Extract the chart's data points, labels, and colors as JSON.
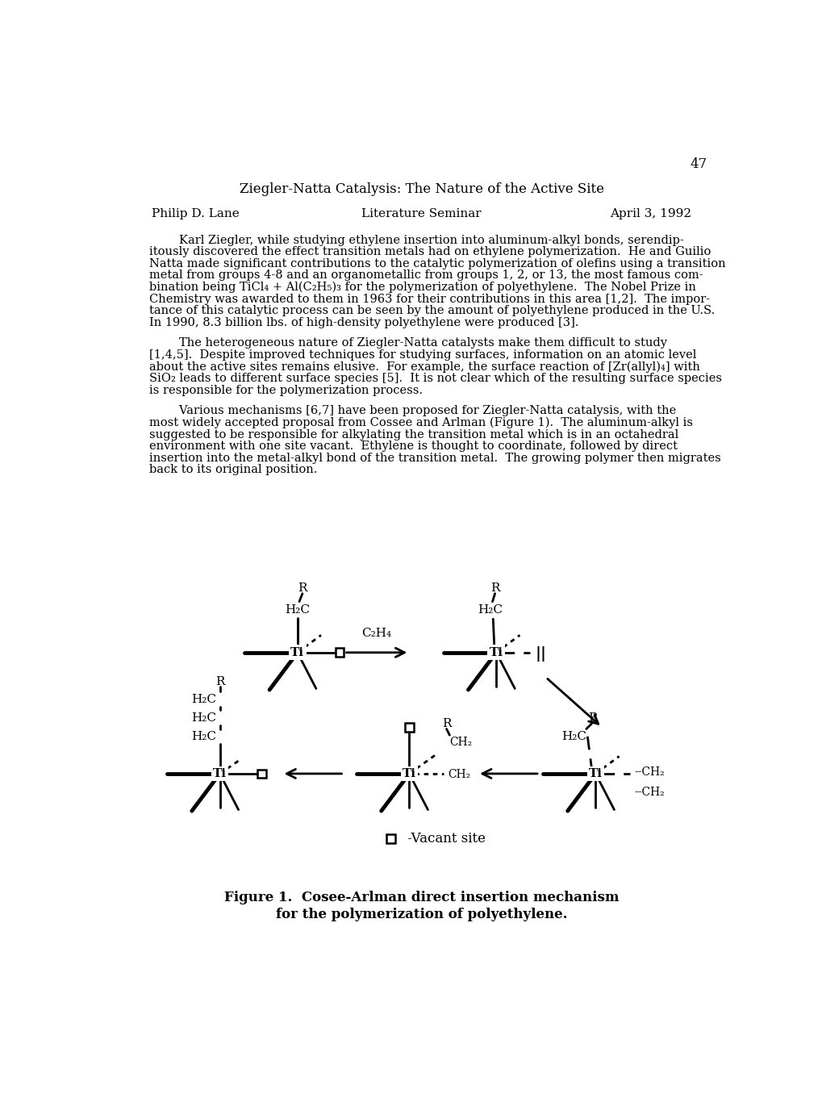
{
  "page_number": "47",
  "title": "Ziegler-Natta Catalysis: The Nature of the Active Site",
  "author": "Philip D. Lane",
  "center_header": "Literature Seminar",
  "date": "April 3, 1992",
  "p1_lines": [
    "        Karl Ziegler, while studying ethylene insertion into aluminum-alkyl bonds, serendip-",
    "itously discovered the effect transition metals had on ethylene polymerization.  He and Guilio",
    "Natta made significant contributions to the catalytic polymerization of olefins using a transition",
    "metal from groups 4-8 and an organometallic from groups 1, 2, or 13, the most famous com-",
    "bination being TiCl₄ + Al(C₂H₅)₃ for the polymerization of polyethylene.  The Nobel Prize in",
    "Chemistry was awarded to them in 1963 for their contributions in this area [1,2].  The impor-",
    "tance of this catalytic process can be seen by the amount of polyethylene produced in the U.S.",
    "In 1990, 8.3 billion lbs. of high-density polyethylene were produced [3]."
  ],
  "p2_lines": [
    "        The heterogeneous nature of Ziegler-Natta catalysts make them difficult to study",
    "[1,4,5].  Despite improved techniques for studying surfaces, information on an atomic level",
    "about the active sites remains elusive.  For example, the surface reaction of [Zr(allyl)₄] with",
    "SiO₂ leads to different surface species [5].  It is not clear which of the resulting surface species",
    "is responsible for the polymerization process."
  ],
  "p3_lines": [
    "        Various mechanisms [6,7] have been proposed for Ziegler-Natta catalysis, with the",
    "most widely accepted proposal from Cossee and Arlman (Figure 1).  The aluminum-alkyl is",
    "suggested to be responsible for alkylating the transition metal which is in an octahedral",
    "environment with one site vacant.  Ethylene is thought to coordinate, followed by direct",
    "insertion into the metal-alkyl bond of the transition metal.  The growing polymer then migrates",
    "back to its original position."
  ],
  "fig_cap1": "Figure 1.  Cosee-Arlman direct insertion mechanism",
  "fig_cap2": "for the polymerization of polyethylene.",
  "bg_color": "#ffffff"
}
